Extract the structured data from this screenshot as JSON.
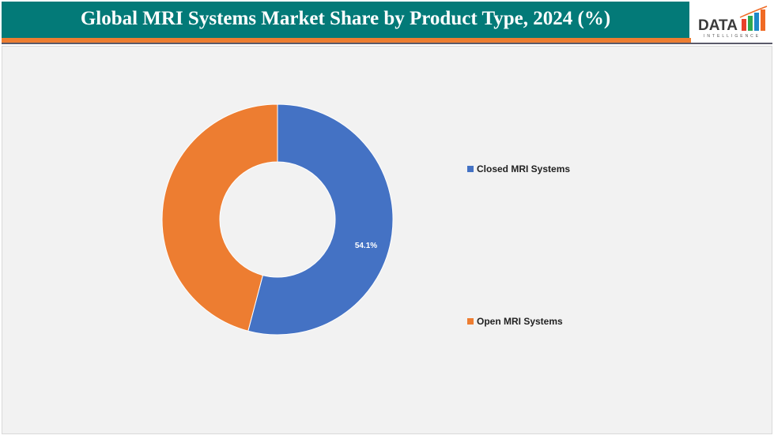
{
  "header": {
    "title": "Global MRI Systems Market Share by Product Type, 2024 (%)"
  },
  "logo": {
    "text": "DATA",
    "subtext": "INTELLIGENCE"
  },
  "chart_data": {
    "type": "pie",
    "donut": true,
    "title": "Global MRI Systems Market Share by Product Type, 2024 (%)",
    "categories": [
      "Closed MRI Systems",
      "Open MRI Systems"
    ],
    "values": [
      54.1,
      45.9
    ],
    "data_labels": [
      "54.1%",
      ""
    ],
    "colors": [
      "#4472c4",
      "#ed7d31"
    ],
    "legend_position": "right"
  }
}
